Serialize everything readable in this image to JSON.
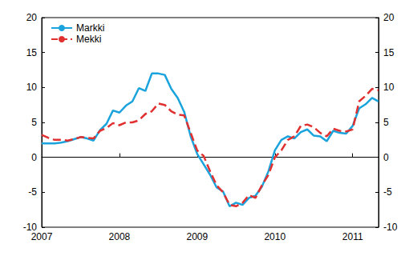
{
  "chart_data": {
    "type": "line",
    "categories": [
      "2007",
      null,
      null,
      null,
      null,
      null,
      null,
      null,
      null,
      null,
      null,
      null,
      "2008",
      null,
      null,
      null,
      null,
      null,
      null,
      null,
      null,
      null,
      null,
      null,
      "2009",
      null,
      null,
      null,
      null,
      null,
      null,
      null,
      null,
      null,
      null,
      null,
      "2010",
      null,
      null,
      null,
      null,
      null,
      null,
      null,
      null,
      null,
      null,
      null,
      "2011",
      null,
      null,
      null,
      null
    ],
    "series": [
      {
        "name": "Markki",
        "color": "#1aa3dc",
        "line_style": "solid",
        "values": [
          2.0,
          2.0,
          2.0,
          2.1,
          2.3,
          2.6,
          2.9,
          2.7,
          2.4,
          3.9,
          4.8,
          6.7,
          6.4,
          7.4,
          8.0,
          9.9,
          9.5,
          12.0,
          12.0,
          11.8,
          9.8,
          8.5,
          6.5,
          3.0,
          0.5,
          -1.0,
          -2.5,
          -4.3,
          -4.9,
          -7.0,
          -6.5,
          -6.8,
          -5.8,
          -5.5,
          -4.2,
          -2.0,
          1.0,
          2.5,
          3.0,
          2.7,
          3.6,
          4.0,
          3.1,
          3.0,
          2.3,
          3.8,
          3.5,
          3.4,
          4.5,
          7.0,
          7.6,
          8.5,
          8.0
        ]
      },
      {
        "name": "Mekki",
        "color": "#e03030",
        "line_style": "dashed",
        "values": [
          3.2,
          2.8,
          2.5,
          2.5,
          2.4,
          2.6,
          2.9,
          2.8,
          2.7,
          3.8,
          4.2,
          4.9,
          4.6,
          5.0,
          5.0,
          5.3,
          6.2,
          6.6,
          7.7,
          7.5,
          6.6,
          6.1,
          6.0,
          3.5,
          1.0,
          0.2,
          -2.0,
          -4.0,
          -5.0,
          -6.8,
          -7.0,
          -6.5,
          -5.4,
          -5.8,
          -4.0,
          -2.5,
          0.0,
          1.0,
          2.5,
          3.0,
          4.5,
          4.7,
          4.3,
          3.5,
          3.0,
          4.1,
          3.8,
          3.7,
          4.0,
          8.0,
          8.8,
          9.8,
          9.6
        ]
      }
    ],
    "ylim": [
      -10,
      20
    ],
    "yticks": [
      -10,
      -5,
      0,
      5,
      10,
      15,
      20
    ],
    "grid": false,
    "legend": "top-left"
  }
}
